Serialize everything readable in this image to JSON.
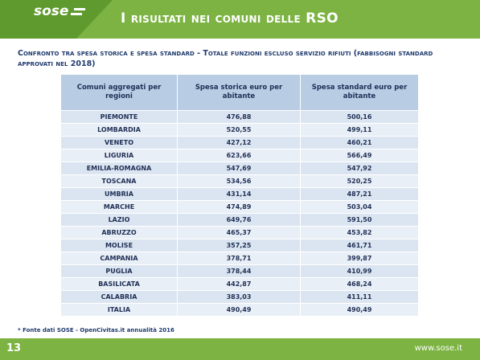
{
  "header": {
    "logo": "sose",
    "title": "I risultati nei comuni delle RSO"
  },
  "subtitle": "Confronto tra spesa storica e spesa standard - Totale funzioni escluso servizio rifiuti (fabbisogni standard approvati nel 2018)",
  "table": {
    "columns": [
      "Comuni aggregati per regioni",
      "Spesa storica euro per abitante",
      "Spesa standard euro per abitante"
    ],
    "rows": [
      [
        "PIEMONTE",
        "476,88",
        "500,16"
      ],
      [
        "LOMBARDIA",
        "520,55",
        "499,11"
      ],
      [
        "VENETO",
        "427,12",
        "460,21"
      ],
      [
        "LIGURIA",
        "623,66",
        "566,49"
      ],
      [
        "EMILIA-ROMAGNA",
        "547,69",
        "547,92"
      ],
      [
        "TOSCANA",
        "534,56",
        "520,25"
      ],
      [
        "UMBRIA",
        "431,14",
        "487,21"
      ],
      [
        "MARCHE",
        "474,89",
        "503,04"
      ],
      [
        "LAZIO",
        "649,76",
        "591,50"
      ],
      [
        "ABRUZZO",
        "465,37",
        "453,82"
      ],
      [
        "MOLISE",
        "357,25",
        "461,71"
      ],
      [
        "CAMPANIA",
        "378,71",
        "399,87"
      ],
      [
        "PUGLIA",
        "378,44",
        "410,99"
      ],
      [
        "BASILICATA",
        "442,87",
        "468,24"
      ],
      [
        "CALABRIA",
        "383,03",
        "411,11"
      ],
      [
        "ITALIA",
        "490,49",
        "490,49"
      ]
    ]
  },
  "footnote": "* Fonte dati SOSE - OpenCivitas.it annualità 2016",
  "footer": {
    "page": "13",
    "url": "www.sose.it"
  }
}
